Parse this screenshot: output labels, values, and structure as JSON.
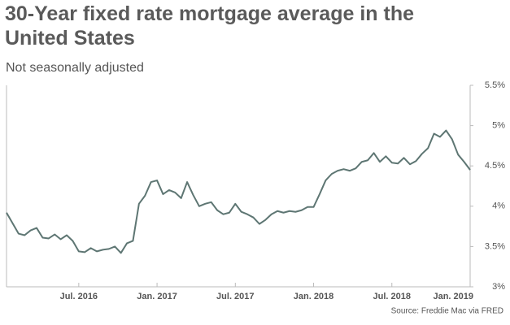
{
  "chart_data": {
    "type": "line",
    "title": "30-Year fixed rate mortgage average in the United States",
    "subtitle": "Not seasonally adjusted",
    "source": "Source: Freddie Mac via FRED",
    "categories": [
      null,
      null,
      null,
      null,
      null,
      null,
      null,
      null,
      null,
      null,
      null,
      null,
      "Jul. 2016",
      null,
      null,
      null,
      null,
      null,
      null,
      null,
      null,
      null,
      null,
      null,
      null,
      "Jan. 2017",
      null,
      null,
      null,
      null,
      null,
      null,
      null,
      null,
      null,
      null,
      null,
      null,
      "Jul. 2017",
      null,
      null,
      null,
      null,
      null,
      null,
      null,
      null,
      null,
      null,
      null,
      null,
      "Jan. 2018",
      null,
      null,
      null,
      null,
      null,
      null,
      null,
      null,
      null,
      null,
      null,
      null,
      "Jul. 2018",
      null,
      null,
      null,
      null,
      null,
      null,
      null,
      null,
      null,
      null,
      null,
      null,
      "Jan. 2019"
    ],
    "series": [
      {
        "name": "30-Year fixed rate mortgage average",
        "color": "#5e7673",
        "values": [
          3.92,
          3.79,
          3.66,
          3.64,
          3.7,
          3.73,
          3.61,
          3.6,
          3.65,
          3.59,
          3.64,
          3.57,
          3.44,
          3.43,
          3.48,
          3.44,
          3.46,
          3.47,
          3.5,
          3.42,
          3.54,
          3.57,
          4.03,
          4.13,
          4.3,
          4.32,
          4.15,
          4.2,
          4.17,
          4.1,
          4.3,
          4.14,
          4.0,
          4.03,
          4.05,
          3.95,
          3.9,
          3.92,
          4.03,
          3.93,
          3.9,
          3.86,
          3.78,
          3.83,
          3.9,
          3.94,
          3.92,
          3.94,
          3.93,
          3.95,
          3.99,
          3.99,
          4.15,
          4.32,
          4.4,
          4.44,
          4.46,
          4.44,
          4.47,
          4.55,
          4.57,
          4.66,
          4.55,
          4.62,
          4.54,
          4.53,
          4.6,
          4.52,
          4.56,
          4.65,
          4.72,
          4.9,
          4.86,
          4.94,
          4.83,
          4.64,
          4.55,
          4.45
        ]
      }
    ],
    "ylim": [
      3,
      5.5
    ],
    "yticks": [
      {
        "value": 3,
        "label": "3%"
      },
      {
        "value": 3.5,
        "label": "3.5%"
      },
      {
        "value": 4,
        "label": "4%"
      },
      {
        "value": 4.5,
        "label": "4.5%"
      },
      {
        "value": 5,
        "label": "5%"
      },
      {
        "value": 5.5,
        "label": "5.5%"
      }
    ]
  }
}
